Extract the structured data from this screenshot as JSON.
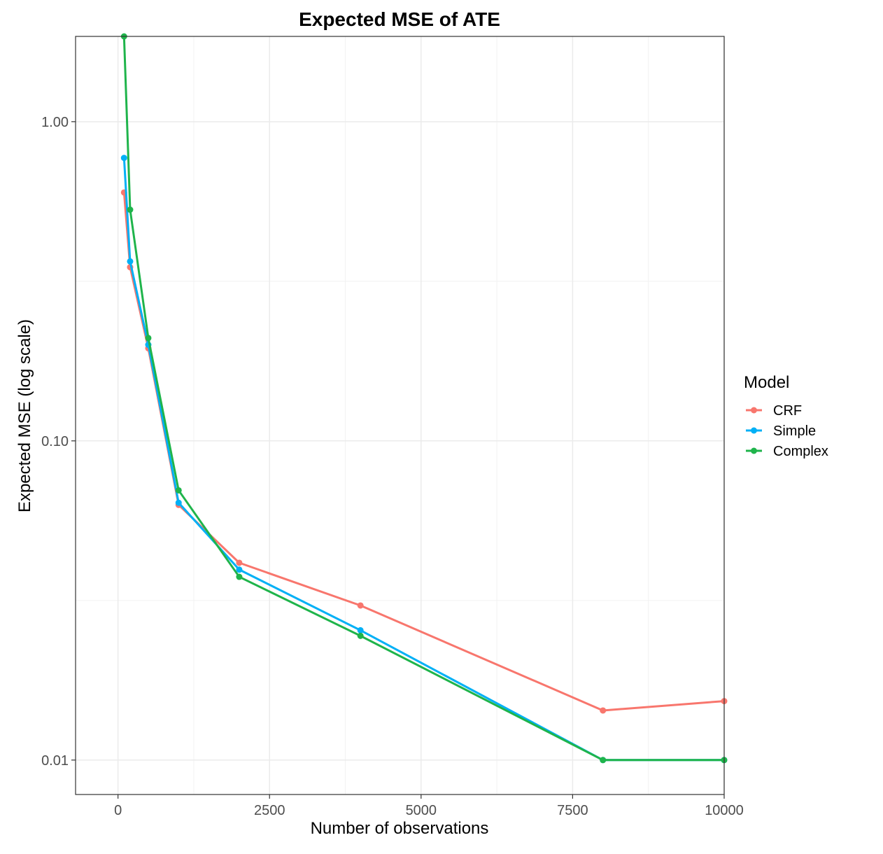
{
  "chart_data": {
    "type": "line",
    "title": "Expected MSE of ATE",
    "xlabel": "Number of observations",
    "ylabel": "Expected MSE (log scale)",
    "x_scale": "linear",
    "y_scale": "log10",
    "xlim": [
      -700,
      10000
    ],
    "ylim": [
      0.0078,
      1.85
    ],
    "x_ticks": [
      0,
      2500,
      5000,
      7500,
      10000
    ],
    "x_tick_labels": [
      "0",
      "2500",
      "5000",
      "7500",
      "10000"
    ],
    "y_ticks": [
      0.01,
      0.1,
      1.0
    ],
    "y_tick_labels": [
      "0.01",
      "0.10",
      "1.00"
    ],
    "grid": true,
    "legend": {
      "title": "Model",
      "position": "right"
    },
    "x": [
      100,
      200,
      500,
      1000,
      2000,
      4000,
      8000,
      10000
    ],
    "series": [
      {
        "name": "CRF",
        "color": "#F8766D",
        "values": [
          0.6,
          0.35,
          0.195,
          0.063,
          0.0415,
          0.0305,
          0.0143,
          0.0153
        ]
      },
      {
        "name": "Simple",
        "color": "#00B0F6",
        "values": [
          0.77,
          0.365,
          0.2,
          0.064,
          0.0395,
          0.0255,
          0.01,
          0.01
        ]
      },
      {
        "name": "Complex",
        "color": "#1FB44B",
        "values": [
          1.85,
          0.53,
          0.21,
          0.07,
          0.0375,
          0.0245,
          0.01,
          0.01
        ]
      }
    ]
  }
}
